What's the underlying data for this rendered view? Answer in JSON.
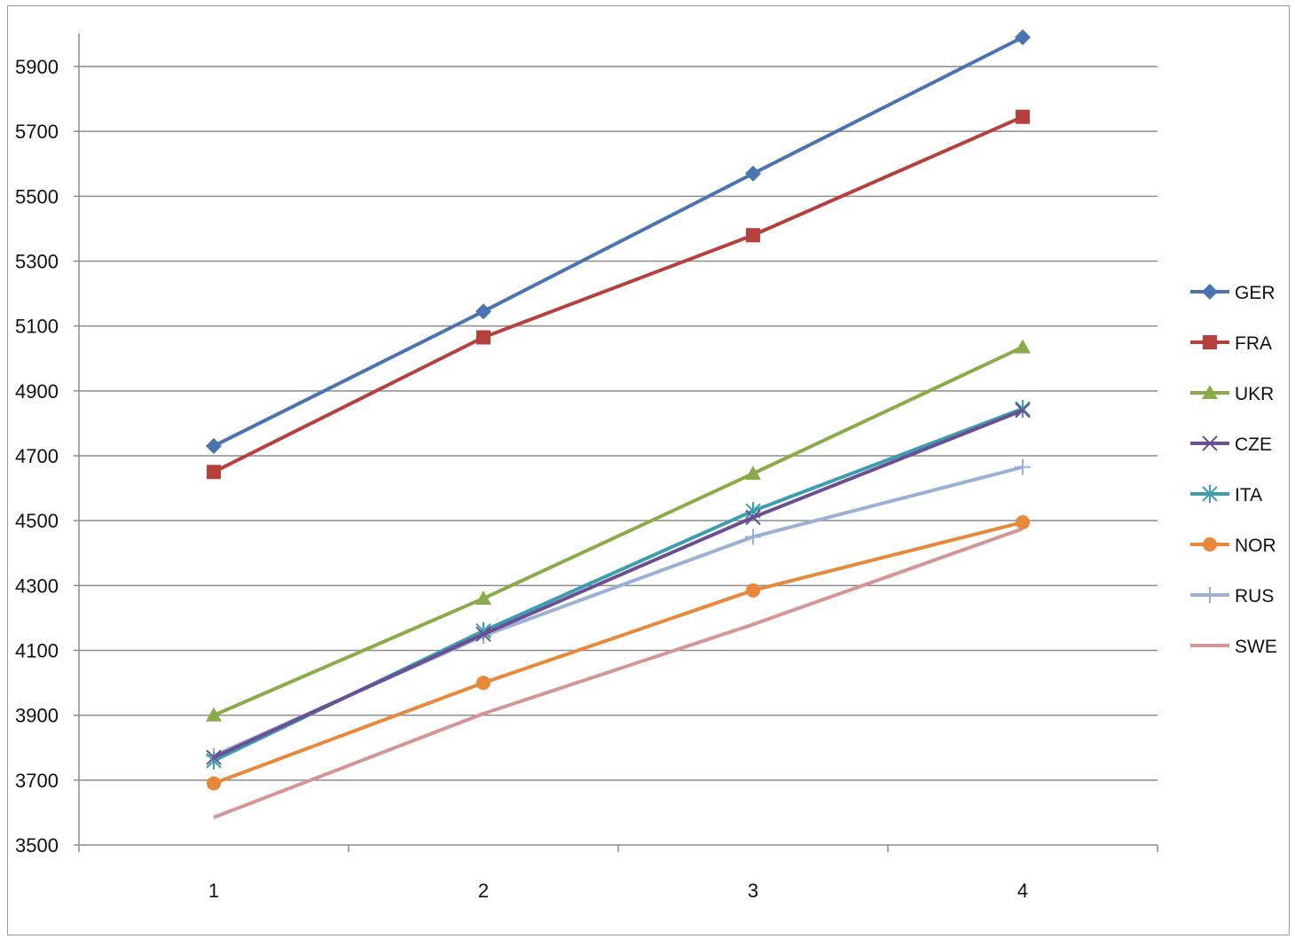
{
  "chart_data": {
    "type": "line",
    "title": "",
    "xlabel": "",
    "ylabel": "",
    "categories": [
      "1",
      "2",
      "3",
      "4"
    ],
    "ylim": [
      3500,
      6000
    ],
    "yticks": [
      3500,
      3700,
      3900,
      4100,
      4300,
      4500,
      4700,
      4900,
      5100,
      5300,
      5500,
      5700,
      5900
    ],
    "grid": true,
    "legend_position": "right",
    "series": [
      {
        "name": "GER",
        "color": "#4a73b0",
        "marker": "diamond",
        "values": [
          4730,
          5145,
          5570,
          5990
        ]
      },
      {
        "name": "FRA",
        "color": "#b5403c",
        "marker": "square",
        "values": [
          4650,
          5065,
          5380,
          5745
        ]
      },
      {
        "name": "UKR",
        "color": "#8aab4a",
        "marker": "triangle",
        "values": [
          3900,
          4260,
          4645,
          5035
        ]
      },
      {
        "name": "CZE",
        "color": "#6b4f93",
        "marker": "x",
        "values": [
          3770,
          4150,
          4510,
          4840
        ]
      },
      {
        "name": "ITA",
        "color": "#3c9db0",
        "marker": "asterisk",
        "values": [
          3760,
          4160,
          4530,
          4845
        ]
      },
      {
        "name": "NOR",
        "color": "#e8883a",
        "marker": "circle",
        "values": [
          3690,
          4000,
          4285,
          4495
        ]
      },
      {
        "name": "RUS",
        "color": "#9bb0d6",
        "marker": "plus",
        "values": [
          3775,
          4145,
          4450,
          4665
        ]
      },
      {
        "name": "SWE",
        "color": "#d69595",
        "marker": "none",
        "values": [
          3585,
          3905,
          4180,
          4475
        ]
      }
    ]
  }
}
